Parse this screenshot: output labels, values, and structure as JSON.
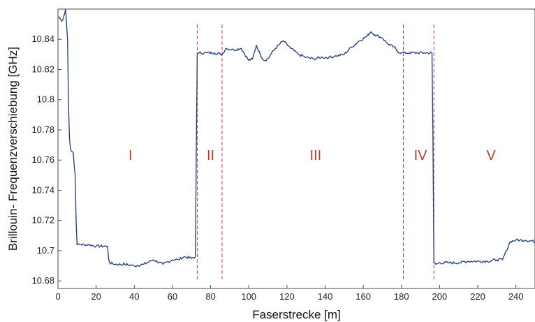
{
  "chart_data": {
    "type": "line",
    "title": "",
    "xlabel": "Faserstrecke [m]",
    "ylabel": "Brillouin- Frequenzverschiebung [GHz]",
    "xlim": [
      0,
      250
    ],
    "ylim": [
      10.675,
      10.86
    ],
    "xticks": [
      "0",
      "20",
      "40",
      "60",
      "80",
      "100",
      "120",
      "140",
      "160",
      "180",
      "200",
      "220",
      "240"
    ],
    "yticks": [
      "10.68",
      "10.7",
      "10.72",
      "10.74",
      "10.76",
      "10.78",
      "10.8",
      "10.82",
      "10.84"
    ],
    "grid": false,
    "line_color": "#1f3a7a",
    "divider_color": "#d04040",
    "region_label_color": "#c0392b",
    "region_boundaries": [
      73,
      86,
      181,
      197
    ],
    "region_labels": [
      {
        "label": "I",
        "x": 38,
        "y": 10.76
      },
      {
        "label": "II",
        "x": 80,
        "y": 10.76
      },
      {
        "label": "III",
        "x": 135,
        "y": 10.76
      },
      {
        "label": "IV",
        "x": 190,
        "y": 10.76
      },
      {
        "label": "V",
        "x": 227,
        "y": 10.76
      }
    ],
    "series": [
      {
        "x": [
          0,
          1,
          2,
          3,
          4,
          5,
          5.5,
          6,
          6.5,
          7,
          8,
          9,
          9.5,
          10,
          12,
          16,
          20,
          26,
          26.5,
          27,
          30,
          35,
          40,
          45,
          50,
          55,
          60,
          63,
          66,
          70,
          72,
          72.5,
          73,
          74,
          78,
          82,
          86,
          88,
          92,
          96,
          100,
          102,
          104,
          106,
          108,
          110,
          112,
          114,
          118,
          122,
          126,
          130,
          134,
          138,
          142,
          146,
          150,
          154,
          158,
          162,
          164,
          166,
          170,
          172,
          174,
          176,
          178,
          180,
          184,
          188,
          192,
          196,
          196.5,
          197,
          198,
          200,
          205,
          210,
          215,
          220,
          225,
          230,
          233,
          235,
          237,
          240,
          245,
          250
        ],
        "y": [
          10.855,
          10.854,
          10.852,
          10.855,
          10.86,
          10.84,
          10.8,
          10.775,
          10.768,
          10.766,
          10.765,
          10.75,
          10.72,
          10.704,
          10.704,
          10.704,
          10.703,
          10.703,
          10.695,
          10.692,
          10.691,
          10.691,
          10.69,
          10.691,
          10.694,
          10.691,
          10.694,
          10.694,
          10.696,
          10.695,
          10.696,
          10.77,
          10.83,
          10.831,
          10.831,
          10.831,
          10.83,
          10.834,
          10.833,
          10.834,
          10.826,
          10.827,
          10.836,
          10.83,
          10.826,
          10.827,
          10.831,
          10.834,
          10.839,
          10.834,
          10.83,
          10.828,
          10.827,
          10.828,
          10.828,
          10.829,
          10.83,
          10.835,
          10.839,
          10.842,
          10.845,
          10.843,
          10.841,
          10.838,
          10.836,
          10.835,
          10.832,
          10.831,
          10.831,
          10.831,
          10.831,
          10.831,
          10.78,
          10.692,
          10.691,
          10.692,
          10.692,
          10.692,
          10.693,
          10.693,
          10.693,
          10.694,
          10.694,
          10.7,
          10.706,
          10.707,
          10.707,
          10.706
        ]
      }
    ]
  }
}
